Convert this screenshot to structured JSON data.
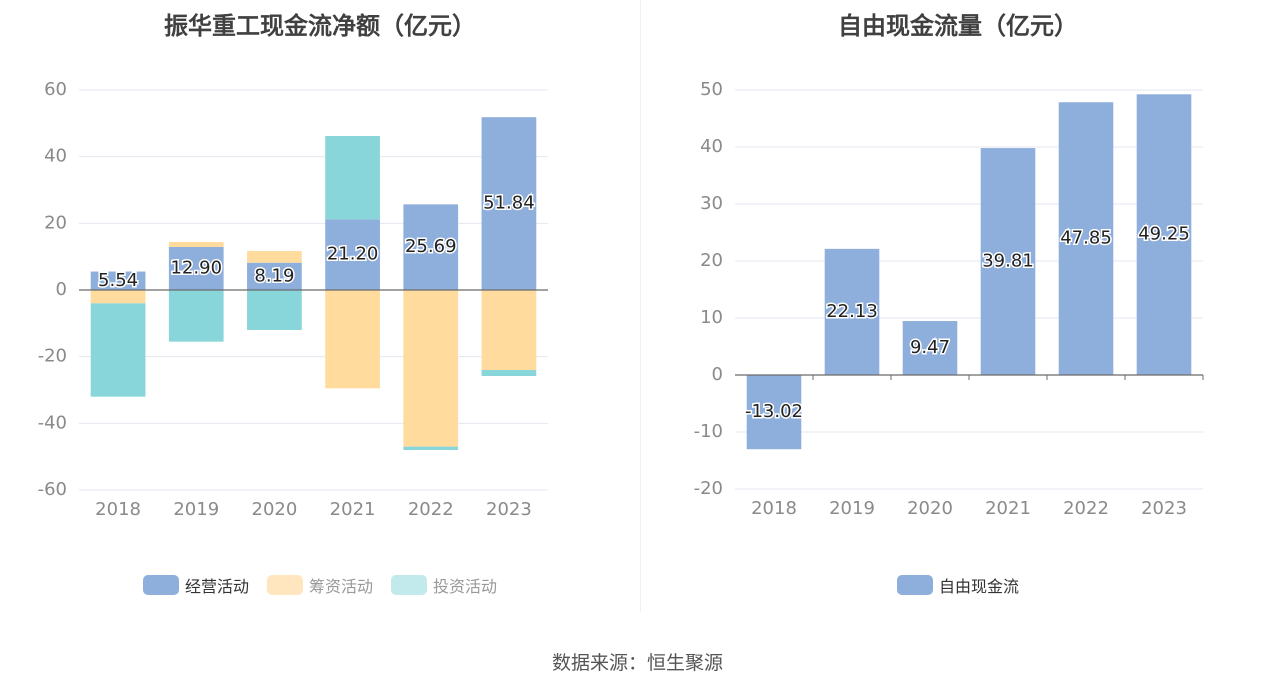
{
  "colors": {
    "operating": "#8eaedb",
    "financing": "#ffdb9e",
    "investing": "#88d6da",
    "grid": "#e4e7f0",
    "axis": "#6b6b6b",
    "tick": "#8a8a8a"
  },
  "source": "数据来源：恒生聚源",
  "chart_data": [
    {
      "type": "bar",
      "stacked": true,
      "title": "振华重工现金流净额（亿元）",
      "categories": [
        "2018",
        "2019",
        "2020",
        "2021",
        "2022",
        "2023"
      ],
      "ylim": [
        -60,
        60
      ],
      "yticks": [
        60,
        40,
        20,
        0,
        -20,
        -40,
        -60
      ],
      "ytick_labels": [
        "60",
        "40",
        "20",
        "0",
        "-20",
        "-40",
        "-60"
      ],
      "grid": true,
      "legend": "bottom",
      "series": [
        {
          "name": "经营活动",
          "values": [
            5.54,
            12.9,
            8.19,
            21.2,
            25.69,
            51.84
          ],
          "labels": [
            "5.54",
            "12.90",
            "8.19",
            "21.20",
            "25.69",
            "51.84"
          ]
        },
        {
          "name": "筹资活动",
          "values": [
            -4.0,
            1.5,
            3.5,
            -29.5,
            -47.0,
            -24.0
          ]
        },
        {
          "name": "投资活动",
          "values": [
            -28.0,
            -15.5,
            -12.0,
            25.0,
            -1.0,
            -1.8
          ]
        }
      ]
    },
    {
      "type": "bar",
      "title": "自由现金流量（亿元）",
      "categories": [
        "2018",
        "2019",
        "2020",
        "2021",
        "2022",
        "2023"
      ],
      "ylim": [
        -20,
        50
      ],
      "yticks": [
        50,
        40,
        30,
        20,
        10,
        0,
        -10,
        -20
      ],
      "ytick_labels": [
        "50",
        "40",
        "30",
        "20",
        "10",
        "0",
        "-10",
        "-20"
      ],
      "grid": true,
      "legend": "bottom",
      "series": [
        {
          "name": "自由现金流",
          "values": [
            -13.02,
            22.13,
            9.47,
            39.81,
            47.85,
            49.25
          ],
          "labels": [
            "-13.02",
            "22.13",
            "9.47",
            "39.81",
            "47.85",
            "49.25"
          ]
        }
      ]
    }
  ]
}
